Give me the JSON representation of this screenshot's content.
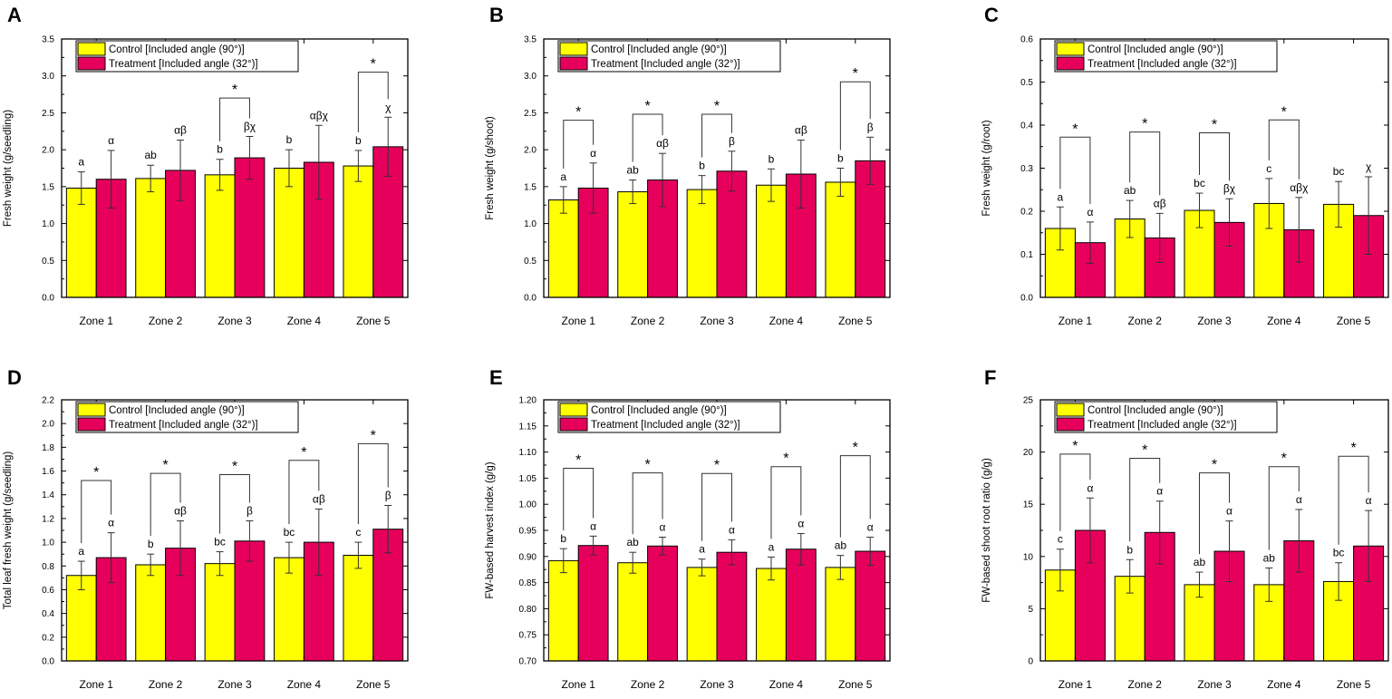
{
  "figure": {
    "categories": [
      "Zone 1",
      "Zone 2",
      "Zone 3",
      "Zone 4",
      "Zone 5"
    ],
    "legend": {
      "control": "Control [Included angle (90°)]",
      "treatment": "Treatment [Included angle (32°)]"
    },
    "colors": {
      "control": "#FFFF00",
      "treatment": "#E6005C",
      "axis": "#000000"
    }
  },
  "chart_data": [
    {
      "panel": "A",
      "type": "bar",
      "ylabel": "Fresh weight (g/seedling)",
      "ylim": [
        0,
        3.5
      ],
      "yticks": [
        "0.0",
        "0.5",
        "1.0",
        "1.5",
        "2.0",
        "2.5",
        "3.0",
        "3.5"
      ],
      "categories": [
        "Zone 1",
        "Zone 2",
        "Zone 3",
        "Zone 4",
        "Zone 5"
      ],
      "series": [
        {
          "name": "Control [Included angle (90°)]",
          "values": [
            1.48,
            1.61,
            1.66,
            1.75,
            1.78
          ],
          "errors": [
            0.22,
            0.18,
            0.21,
            0.25,
            0.21
          ],
          "letters": [
            "a",
            "ab",
            "b",
            "b",
            "b"
          ]
        },
        {
          "name": "Treatment [Included angle (32°)]",
          "values": [
            1.6,
            1.72,
            1.89,
            1.83,
            2.04
          ],
          "errors": [
            0.39,
            0.41,
            0.29,
            0.5,
            0.4
          ],
          "letters": [
            "α",
            "αβ",
            "βχ",
            "αβχ",
            "χ"
          ]
        }
      ],
      "significance": [
        {
          "zone": "Zone 3",
          "label": "*",
          "level": 2.7
        },
        {
          "zone": "Zone 5",
          "label": "*",
          "level": 3.05
        }
      ]
    },
    {
      "panel": "B",
      "type": "bar",
      "ylabel": "Fresh weight (g/shoot)",
      "ylim": [
        0,
        3.5
      ],
      "yticks": [
        "0.0",
        "0.5",
        "1.0",
        "1.5",
        "2.0",
        "2.5",
        "3.0",
        "3.5"
      ],
      "categories": [
        "Zone 1",
        "Zone 2",
        "Zone 3",
        "Zone 4",
        "Zone 5"
      ],
      "series": [
        {
          "name": "Control [Included angle (90°)]",
          "values": [
            1.32,
            1.43,
            1.46,
            1.52,
            1.56
          ],
          "errors": [
            0.18,
            0.16,
            0.19,
            0.22,
            0.19
          ],
          "letters": [
            "a",
            "ab",
            "b",
            "b",
            "b"
          ]
        },
        {
          "name": "Treatment [Included angle (32°)]",
          "values": [
            1.48,
            1.59,
            1.71,
            1.67,
            1.85
          ],
          "errors": [
            0.34,
            0.36,
            0.27,
            0.46,
            0.32
          ],
          "letters": [
            "α",
            "αβ",
            "β",
            "αβ",
            "β"
          ]
        }
      ],
      "significance": [
        {
          "zone": "Zone 1",
          "label": "*",
          "level": 2.4
        },
        {
          "zone": "Zone 2",
          "label": "*",
          "level": 2.48
        },
        {
          "zone": "Zone 3",
          "label": "*",
          "level": 2.48
        },
        {
          "zone": "Zone 5",
          "label": "*",
          "level": 2.92
        }
      ]
    },
    {
      "panel": "C",
      "type": "bar",
      "ylabel": "Fresh weight (g/root)",
      "ylim": [
        0,
        0.6
      ],
      "yticks": [
        "0.0",
        "0.1",
        "0.2",
        "0.3",
        "0.4",
        "0.5",
        "0.6"
      ],
      "categories": [
        "Zone 1",
        "Zone 2",
        "Zone 3",
        "Zone 4",
        "Zone 5"
      ],
      "series": [
        {
          "name": "Control [Included angle (90°)]",
          "values": [
            0.16,
            0.182,
            0.202,
            0.218,
            0.216
          ],
          "errors": [
            0.05,
            0.043,
            0.04,
            0.058,
            0.053
          ],
          "letters": [
            "a",
            "ab",
            "bc",
            "c",
            "bc"
          ]
        },
        {
          "name": "Treatment [Included angle (32°)]",
          "values": [
            0.127,
            0.138,
            0.174,
            0.157,
            0.19
          ],
          "errors": [
            0.048,
            0.057,
            0.055,
            0.075,
            0.09
          ],
          "letters": [
            "α",
            "αβ",
            "βχ",
            "αβχ",
            "χ"
          ]
        }
      ],
      "significance": [
        {
          "zone": "Zone 1",
          "label": "*",
          "level": 0.372
        },
        {
          "zone": "Zone 2",
          "label": "*",
          "level": 0.384
        },
        {
          "zone": "Zone 3",
          "label": "*",
          "level": 0.382
        },
        {
          "zone": "Zone 4",
          "label": "*",
          "level": 0.412
        }
      ]
    },
    {
      "panel": "D",
      "type": "bar",
      "ylabel": "Total leaf fresh weight (g/seedling)",
      "ylim": [
        0,
        2.2
      ],
      "yticks": [
        "0.0",
        "0.2",
        "0.4",
        "0.6",
        "0.8",
        "1.0",
        "1.2",
        "1.4",
        "1.6",
        "1.8",
        "2.0",
        "2.2"
      ],
      "categories": [
        "Zone 1",
        "Zone 2",
        "Zone 3",
        "Zone 4",
        "Zone 5"
      ],
      "series": [
        {
          "name": "Control [Included angle (90°)]",
          "values": [
            0.72,
            0.81,
            0.82,
            0.87,
            0.89
          ],
          "errors": [
            0.12,
            0.09,
            0.1,
            0.13,
            0.11
          ],
          "letters": [
            "a",
            "b",
            "bc",
            "bc",
            "c"
          ]
        },
        {
          "name": "Treatment [Included angle (32°)]",
          "values": [
            0.87,
            0.95,
            1.01,
            1.0,
            1.11
          ],
          "errors": [
            0.21,
            0.23,
            0.17,
            0.28,
            0.2
          ],
          "letters": [
            "α",
            "αβ",
            "β",
            "αβ",
            "β"
          ]
        }
      ],
      "significance": [
        {
          "zone": "Zone 1",
          "label": "*",
          "level": 1.52
        },
        {
          "zone": "Zone 2",
          "label": "*",
          "level": 1.58
        },
        {
          "zone": "Zone 3",
          "label": "*",
          "level": 1.57
        },
        {
          "zone": "Zone 4",
          "label": "*",
          "level": 1.69
        },
        {
          "zone": "Zone 5",
          "label": "*",
          "level": 1.83
        }
      ]
    },
    {
      "panel": "E",
      "type": "bar",
      "ylabel": "FW-based harvest index (g/g)",
      "ylim": [
        0.7,
        1.2
      ],
      "yticks": [
        "0.70",
        "0.75",
        "0.80",
        "0.85",
        "0.90",
        "0.95",
        "1.00",
        "1.05",
        "1.10",
        "1.15",
        "1.20"
      ],
      "categories": [
        "Zone 1",
        "Zone 2",
        "Zone 3",
        "Zone 4",
        "Zone 5"
      ],
      "series": [
        {
          "name": "Control [Included angle (90°)]",
          "values": [
            0.892,
            0.888,
            0.879,
            0.877,
            0.879
          ],
          "errors": [
            0.023,
            0.02,
            0.016,
            0.022,
            0.023
          ],
          "letters": [
            "b",
            "ab",
            "a",
            "a",
            "ab"
          ]
        },
        {
          "name": "Treatment [Included angle (32°)]",
          "values": [
            0.921,
            0.92,
            0.908,
            0.914,
            0.91
          ],
          "errors": [
            0.018,
            0.017,
            0.024,
            0.03,
            0.027
          ],
          "letters": [
            "α",
            "α",
            "α",
            "α",
            "α"
          ]
        }
      ],
      "significance": [
        {
          "zone": "Zone 1",
          "label": "*",
          "level": 1.069
        },
        {
          "zone": "Zone 2",
          "label": "*",
          "level": 1.06
        },
        {
          "zone": "Zone 3",
          "label": "*",
          "level": 1.059
        },
        {
          "zone": "Zone 4",
          "label": "*",
          "level": 1.072
        },
        {
          "zone": "Zone 5",
          "label": "*",
          "level": 1.093
        }
      ]
    },
    {
      "panel": "F",
      "type": "bar",
      "ylabel": "FW-based shoot root ratio (g/g)",
      "ylim": [
        0,
        25
      ],
      "yticks": [
        "0",
        "5",
        "10",
        "15",
        "20",
        "25"
      ],
      "categories": [
        "Zone 1",
        "Zone 2",
        "Zone 3",
        "Zone 4",
        "Zone 5"
      ],
      "series": [
        {
          "name": "Control [Included angle (90°)]",
          "values": [
            8.7,
            8.1,
            7.3,
            7.3,
            7.6
          ],
          "errors": [
            2.0,
            1.6,
            1.2,
            1.6,
            1.8
          ],
          "letters": [
            "c",
            "b",
            "ab",
            "ab",
            "bc"
          ]
        },
        {
          "name": "Treatment [Included angle (32°)]",
          "values": [
            12.5,
            12.3,
            10.5,
            11.5,
            11.0
          ],
          "errors": [
            3.1,
            3.0,
            2.9,
            3.0,
            3.4
          ],
          "letters": [
            "α",
            "α",
            "α",
            "α",
            "α"
          ]
        }
      ],
      "significance": [
        {
          "zone": "Zone 1",
          "label": "*",
          "level": 19.8
        },
        {
          "zone": "Zone 2",
          "label": "*",
          "level": 19.4
        },
        {
          "zone": "Zone 3",
          "label": "*",
          "level": 18.0
        },
        {
          "zone": "Zone 4",
          "label": "*",
          "level": 18.6
        },
        {
          "zone": "Zone 5",
          "label": "*",
          "level": 19.6
        }
      ]
    }
  ]
}
